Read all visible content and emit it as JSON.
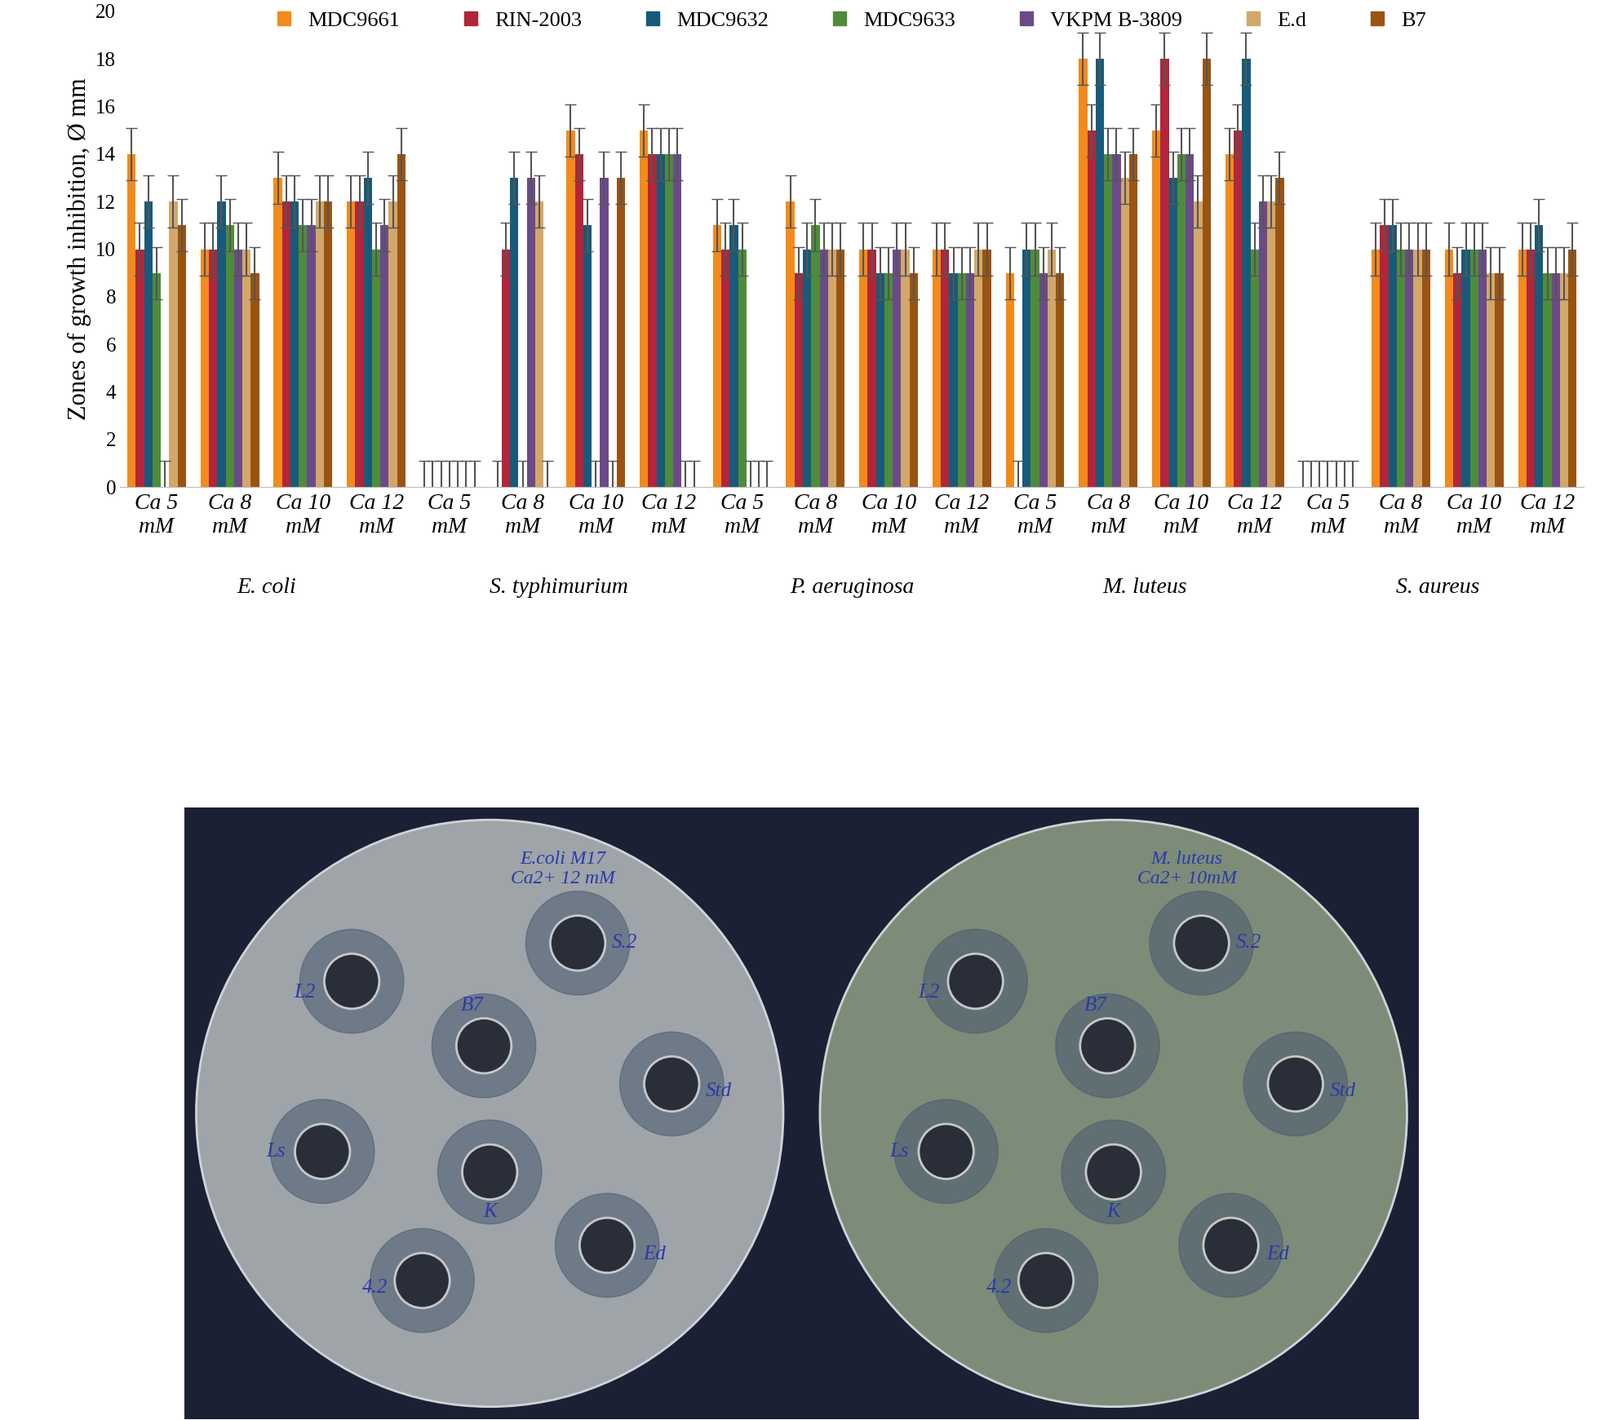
{
  "chart_data": {
    "type": "bar",
    "y_label": "Zones of growth inhibition, Ø mm",
    "categories": [
      "Ca 5 mM",
      "Ca 8 mM",
      "Ca 10 mM",
      "Ca 12 mM",
      "Ca 5 mM",
      "Ca 8 mM",
      "Ca 10 mM",
      "Ca 12 mM",
      "Ca 5 mM",
      "Ca 8 mM",
      "Ca 10 mM",
      "Ca 12 mM",
      "Ca 5 mM",
      "Ca 8 mM",
      "Ca 10 mM",
      "Ca 12 mM",
      "Ca 5 mM",
      "Ca 8 mM",
      "Ca 10 mM",
      "Ca 12 mM"
    ],
    "groups": [
      "E. coli",
      "S. typhimurium",
      "P. aeruginosa",
      "M. luteus",
      "S. aureus"
    ],
    "ylim": [
      0,
      20
    ],
    "yticks": [
      0,
      2,
      4,
      6,
      8,
      10,
      12,
      14,
      16,
      18,
      20
    ],
    "grid": false,
    "legend": "upper center",
    "series": [
      {
        "name": "MDC9661",
        "color": "#f28a1c",
        "values": [
          14,
          10,
          13,
          12,
          0,
          0,
          15,
          15,
          11,
          12,
          10,
          10,
          9,
          18,
          15,
          14,
          0,
          10,
          10,
          10
        ],
        "errors": [
          1.1,
          1.1,
          1.1,
          1.1,
          1.1,
          1.1,
          1.1,
          1.1,
          1.1,
          1.1,
          1.1,
          1.1,
          1.1,
          1.1,
          1.1,
          1.1,
          1.1,
          1.1,
          1.1,
          1.1
        ]
      },
      {
        "name": "RIN-2003",
        "color": "#b2253a",
        "values": [
          10,
          10,
          12,
          12,
          0,
          10,
          14,
          14,
          10,
          9,
          10,
          10,
          0,
          15,
          18,
          15,
          0,
          11,
          9,
          10
        ],
        "errors": [
          1.1,
          1.1,
          1.1,
          1.1,
          1.1,
          1.1,
          1.1,
          1.1,
          1.1,
          1.1,
          1.1,
          1.1,
          1.1,
          1.1,
          1.1,
          1.1,
          1.1,
          1.1,
          1.1,
          1.1
        ]
      },
      {
        "name": "MDC9632",
        "color": "#175a7a",
        "values": [
          12,
          12,
          12,
          13,
          0,
          13,
          11,
          14,
          11,
          10,
          9,
          9,
          10,
          18,
          13,
          18,
          0,
          11,
          10,
          11
        ],
        "errors": [
          1.1,
          1.1,
          1.1,
          1.1,
          1.1,
          1.1,
          1.1,
          1.1,
          1.1,
          1.1,
          1.1,
          1.1,
          1.1,
          1.1,
          1.1,
          1.1,
          1.1,
          1.1,
          1.1,
          1.1
        ]
      },
      {
        "name": "MDC9633",
        "color": "#4e8c3a",
        "values": [
          9,
          11,
          11,
          10,
          0,
          0,
          0,
          14,
          10,
          11,
          9,
          9,
          10,
          14,
          14,
          10,
          0,
          10,
          10,
          9
        ],
        "errors": [
          1.1,
          1.1,
          1.1,
          1.1,
          1.1,
          1.1,
          1.1,
          1.1,
          1.1,
          1.1,
          1.1,
          1.1,
          1.1,
          1.1,
          1.1,
          1.1,
          1.1,
          1.1,
          1.1,
          1.1
        ]
      },
      {
        "name": "VKPM B-3809",
        "color": "#6b4a8a",
        "values": [
          0,
          10,
          11,
          11,
          0,
          13,
          13,
          14,
          0,
          10,
          10,
          9,
          9,
          14,
          14,
          12,
          0,
          10,
          10,
          9
        ],
        "errors": [
          1.1,
          1.1,
          1.1,
          1.1,
          1.1,
          1.1,
          1.1,
          1.1,
          1.1,
          1.1,
          1.1,
          1.1,
          1.1,
          1.1,
          1.1,
          1.1,
          1.1,
          1.1,
          1.1,
          1.1
        ]
      },
      {
        "name": "E.d",
        "color": "#d3a76a",
        "values": [
          12,
          10,
          12,
          12,
          0,
          12,
          0,
          0,
          0,
          10,
          10,
          10,
          10,
          13,
          12,
          12,
          0,
          10,
          9,
          9
        ],
        "errors": [
          1.1,
          1.1,
          1.1,
          1.1,
          1.1,
          1.1,
          1.1,
          1.1,
          1.1,
          1.1,
          1.1,
          1.1,
          1.1,
          1.1,
          1.1,
          1.1,
          1.1,
          1.1,
          1.1,
          1.1
        ]
      },
      {
        "name": "B7",
        "color": "#9a5412",
        "values": [
          11,
          9,
          12,
          14,
          0,
          0,
          13,
          0,
          0,
          10,
          9,
          10,
          9,
          14,
          18,
          13,
          0,
          10,
          9,
          10
        ],
        "errors": [
          1.1,
          1.1,
          1.1,
          1.1,
          1.1,
          1.1,
          1.1,
          1.1,
          1.1,
          1.1,
          1.1,
          1.1,
          1.1,
          1.1,
          1.1,
          1.1,
          1.1,
          1.1,
          1.1,
          1.1
        ]
      }
    ]
  },
  "plates": [
    {
      "title": [
        "E.coli M17",
        "Ca2+ 12 mM"
      ],
      "wells": [
        "L2",
        "B7",
        "S.2",
        "Std",
        "Ls",
        "K",
        "Ed",
        "4.2"
      ]
    },
    {
      "title": [
        "M. luteus",
        "Ca2+ 10mM"
      ],
      "wells": [
        "L2",
        "B7",
        "S.2",
        "Std",
        "Ls",
        "K",
        "Ed",
        "4.2"
      ]
    }
  ]
}
